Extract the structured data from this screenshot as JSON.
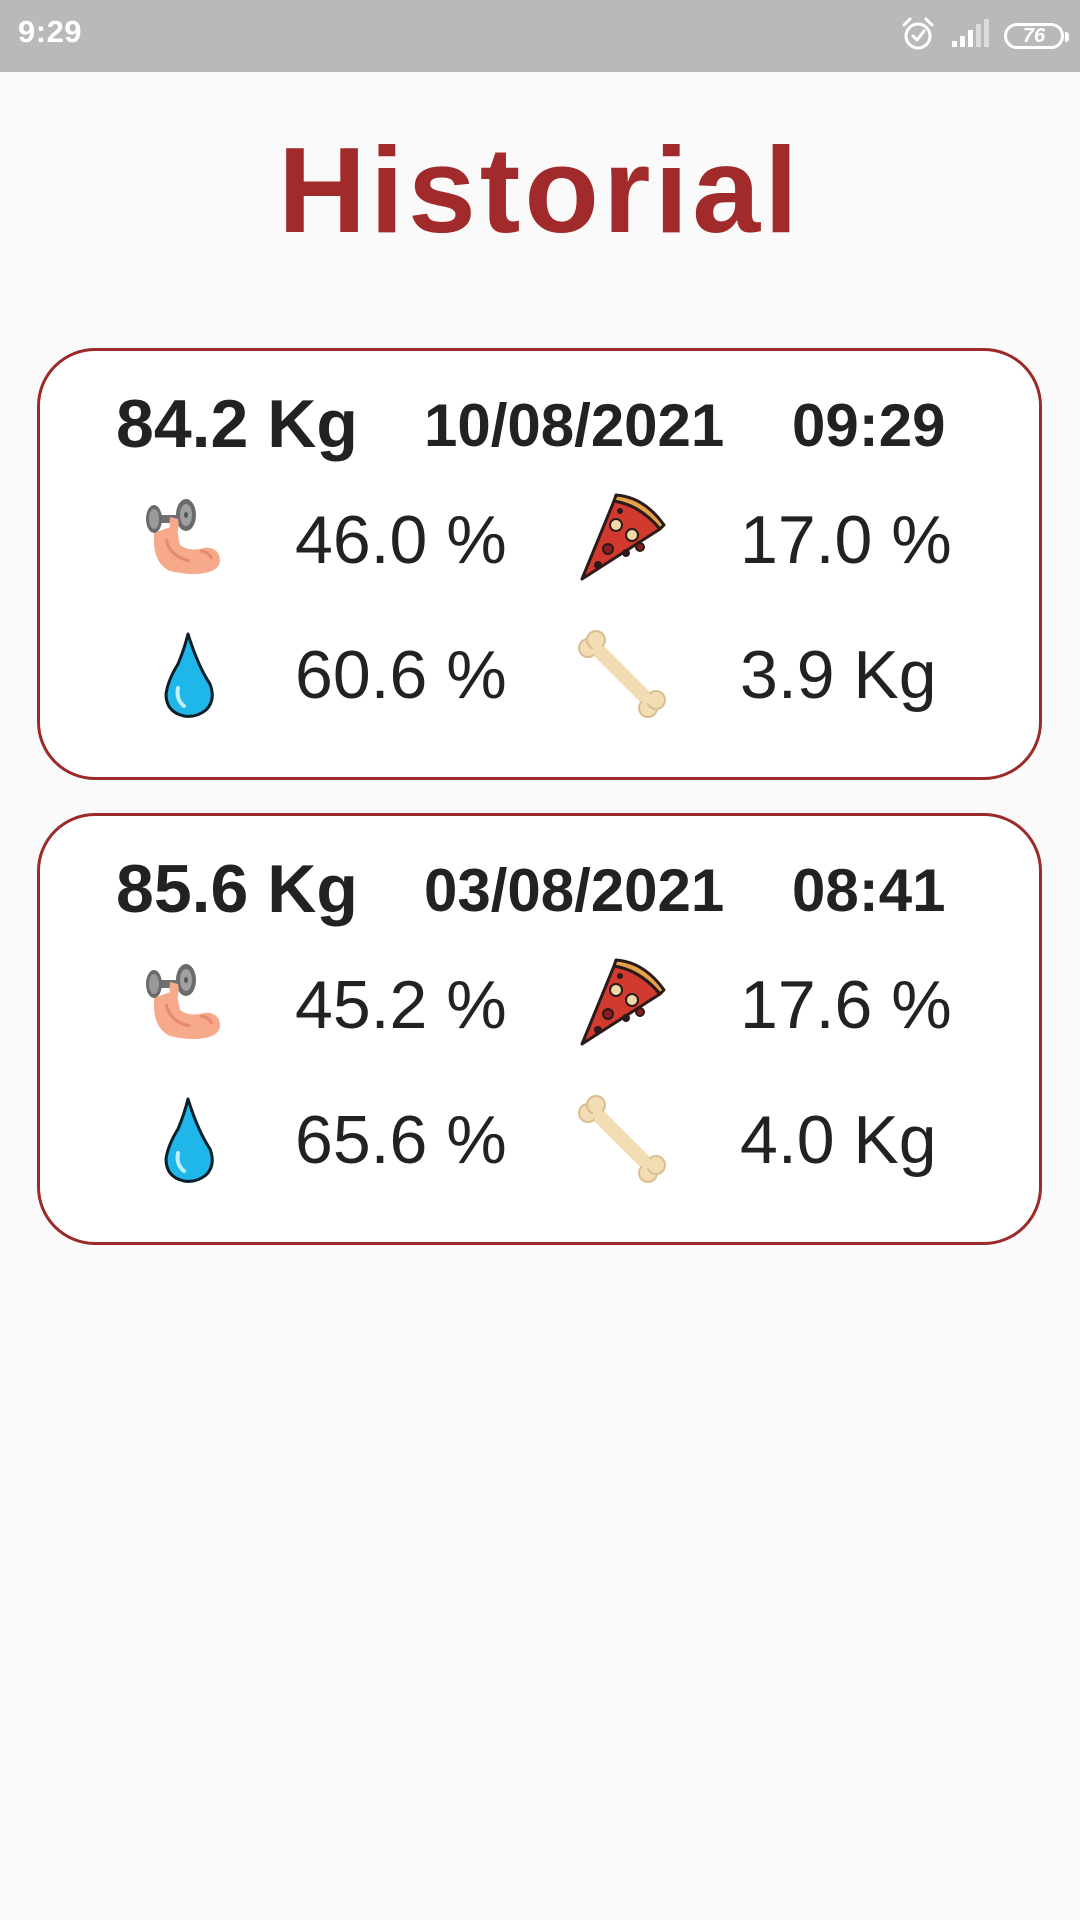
{
  "status_bar": {
    "time": "9:29",
    "battery": "76",
    "icons": [
      "alarm-icon",
      "signal-icon",
      "battery-icon"
    ]
  },
  "page": {
    "title": "Historial",
    "title_color": "#a12a2a",
    "accent_border_color": "#9b2a2a"
  },
  "records": [
    {
      "weight": "84.2 Kg",
      "date": "10/08/2021",
      "time": "09:29",
      "muscle": "46.0 %",
      "fat": "17.0 %",
      "water": "60.6 %",
      "bone": "3.9 Kg"
    },
    {
      "weight": "85.6 Kg",
      "date": "03/08/2021",
      "time": "08:41",
      "muscle": "45.2 %",
      "fat": "17.6 %",
      "water": "65.6 %",
      "bone": "4.0 Kg"
    }
  ],
  "metric_icons": {
    "muscle": "flexed-bicep-dumbbell-icon",
    "fat": "pizza-slice-icon",
    "water": "water-drop-icon",
    "bone": "bone-icon"
  }
}
